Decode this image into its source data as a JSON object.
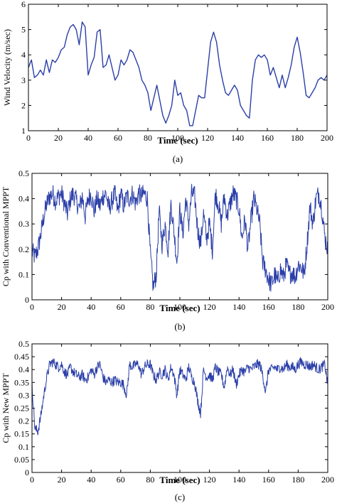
{
  "chart_data": [
    {
      "type": "line",
      "panel_caption": "(a)",
      "xlabel": "Time (sec)",
      "ylabel": "Wind Velocity (m/sec)",
      "xlim": [
        0,
        200
      ],
      "ylim": [
        1,
        6
      ],
      "xticks": [
        0,
        20,
        40,
        60,
        80,
        100,
        120,
        140,
        160,
        180,
        200
      ],
      "yticks": [
        1,
        2,
        3,
        4,
        5,
        6
      ],
      "series": [
        {
          "color": "#2b3fa8",
          "x": [
            0,
            2,
            4,
            6,
            8,
            10,
            12,
            14,
            16,
            18,
            20,
            22,
            24,
            26,
            28,
            30,
            32,
            34,
            36,
            38,
            40,
            42,
            44,
            46,
            48,
            50,
            52,
            54,
            56,
            58,
            60,
            62,
            64,
            66,
            68,
            70,
            72,
            74,
            76,
            78,
            80,
            82,
            84,
            86,
            88,
            90,
            92,
            94,
            96,
            98,
            100,
            102,
            104,
            106,
            108,
            110,
            112,
            114,
            116,
            118,
            120,
            122,
            124,
            126,
            128,
            130,
            132,
            134,
            136,
            138,
            140,
            142,
            144,
            146,
            148,
            150,
            152,
            154,
            156,
            158,
            160,
            162,
            164,
            166,
            168,
            170,
            172,
            174,
            176,
            178,
            180,
            182,
            184,
            186,
            188,
            190,
            192,
            194,
            196,
            198,
            200
          ],
          "y": [
            3.5,
            3.8,
            3.1,
            3.2,
            3.4,
            3.2,
            3.8,
            3.3,
            3.8,
            3.7,
            3.9,
            4.2,
            4.3,
            4.8,
            5.1,
            5.2,
            5.0,
            4.4,
            5.3,
            5.1,
            3.2,
            3.6,
            3.9,
            4.9,
            5.0,
            3.5,
            3.6,
            4.0,
            3.5,
            3.0,
            3.2,
            3.8,
            3.6,
            3.8,
            4.2,
            4.1,
            3.8,
            3.5,
            3.0,
            2.8,
            2.5,
            1.8,
            2.3,
            2.8,
            2.2,
            1.6,
            1.3,
            1.6,
            2.0,
            3.0,
            2.4,
            2.5,
            2.0,
            1.8,
            1.2,
            1.2,
            1.8,
            2.4,
            2.3,
            2.3,
            3.4,
            4.5,
            4.9,
            4.5,
            3.6,
            3.0,
            2.5,
            2.4,
            2.6,
            2.8,
            2.6,
            2.0,
            1.8,
            1.6,
            1.5,
            3.0,
            3.8,
            4.0,
            3.9,
            4.0,
            3.8,
            3.2,
            3.5,
            3.1,
            2.7,
            3.2,
            2.7,
            3.1,
            3.6,
            4.3,
            4.7,
            4.1,
            3.3,
            2.4,
            2.3,
            2.5,
            2.7,
            3.0,
            3.1,
            3.0,
            3.2
          ]
        }
      ]
    },
    {
      "type": "line",
      "panel_caption": "(b)",
      "xlabel": "Time (sec)",
      "ylabel": "Cp with Conventional MPPT",
      "xlim": [
        0,
        200
      ],
      "ylim": [
        0,
        0.5
      ],
      "xticks": [
        0,
        20,
        40,
        60,
        80,
        100,
        120,
        140,
        160,
        180,
        200
      ],
      "yticks": [
        0,
        0.1,
        0.2,
        0.3,
        0.4,
        0.5
      ],
      "series": [
        {
          "color": "#2b3fa8",
          "x": [
            0,
            2,
            4,
            6,
            8,
            10,
            12,
            14,
            16,
            18,
            20,
            22,
            24,
            26,
            28,
            30,
            32,
            34,
            36,
            38,
            40,
            42,
            44,
            46,
            48,
            50,
            52,
            54,
            56,
            58,
            60,
            62,
            64,
            66,
            68,
            70,
            72,
            74,
            76,
            78,
            80,
            82,
            84,
            86,
            88,
            90,
            92,
            94,
            96,
            98,
            100,
            102,
            104,
            106,
            108,
            110,
            112,
            114,
            116,
            118,
            120,
            122,
            124,
            126,
            128,
            130,
            132,
            134,
            136,
            138,
            140,
            142,
            144,
            146,
            148,
            150,
            152,
            154,
            156,
            158,
            160,
            162,
            164,
            166,
            168,
            170,
            172,
            174,
            176,
            178,
            180,
            182,
            184,
            186,
            188,
            190,
            192,
            194,
            196,
            198,
            200
          ],
          "y": [
            0.19,
            0.17,
            0.2,
            0.26,
            0.33,
            0.38,
            0.41,
            0.42,
            0.39,
            0.41,
            0.42,
            0.38,
            0.34,
            0.4,
            0.42,
            0.39,
            0.36,
            0.41,
            0.33,
            0.4,
            0.42,
            0.35,
            0.4,
            0.37,
            0.41,
            0.42,
            0.36,
            0.39,
            0.42,
            0.35,
            0.42,
            0.37,
            0.41,
            0.4,
            0.42,
            0.38,
            0.42,
            0.41,
            0.42,
            0.4,
            0.18,
            0.05,
            0.1,
            0.35,
            0.22,
            0.3,
            0.2,
            0.38,
            0.27,
            0.15,
            0.36,
            0.26,
            0.4,
            0.3,
            0.42,
            0.41,
            0.28,
            0.22,
            0.34,
            0.24,
            0.3,
            0.2,
            0.42,
            0.38,
            0.3,
            0.41,
            0.33,
            0.38,
            0.42,
            0.4,
            0.36,
            0.24,
            0.32,
            0.2,
            0.31,
            0.4,
            0.36,
            0.3,
            0.15,
            0.12,
            0.08,
            0.06,
            0.1,
            0.07,
            0.12,
            0.09,
            0.14,
            0.1,
            0.11,
            0.09,
            0.14,
            0.13,
            0.1,
            0.22,
            0.37,
            0.3,
            0.4,
            0.42,
            0.36,
            0.25,
            0.2
          ]
        }
      ]
    },
    {
      "type": "line",
      "panel_caption": "(c)",
      "xlabel": "Time (sec)",
      "ylabel": "Cp with New MPPT",
      "xlim": [
        0,
        200
      ],
      "ylim": [
        0,
        0.5
      ],
      "xticks": [
        0,
        20,
        40,
        60,
        80,
        100,
        120,
        140,
        160,
        180,
        200
      ],
      "yticks": [
        0,
        0.05,
        0.1,
        0.15,
        0.2,
        0.25,
        0.3,
        0.35,
        0.4,
        0.45,
        0.5
      ],
      "series": [
        {
          "color": "#2b3fa8",
          "x": [
            0,
            2,
            4,
            6,
            8,
            10,
            12,
            14,
            16,
            18,
            20,
            22,
            24,
            26,
            28,
            30,
            32,
            34,
            36,
            38,
            40,
            42,
            44,
            46,
            48,
            50,
            52,
            54,
            56,
            58,
            60,
            62,
            64,
            66,
            68,
            70,
            72,
            74,
            76,
            78,
            80,
            82,
            84,
            86,
            88,
            90,
            92,
            94,
            96,
            98,
            100,
            102,
            104,
            106,
            108,
            110,
            112,
            114,
            116,
            118,
            120,
            122,
            124,
            126,
            128,
            130,
            132,
            134,
            136,
            138,
            140,
            142,
            144,
            146,
            148,
            150,
            152,
            154,
            156,
            158,
            160,
            162,
            164,
            166,
            168,
            170,
            172,
            174,
            176,
            178,
            180,
            182,
            184,
            186,
            188,
            190,
            192,
            194,
            196,
            198,
            200
          ],
          "y": [
            0.34,
            0.17,
            0.16,
            0.22,
            0.3,
            0.37,
            0.42,
            0.43,
            0.42,
            0.41,
            0.42,
            0.39,
            0.38,
            0.41,
            0.39,
            0.38,
            0.37,
            0.38,
            0.36,
            0.37,
            0.4,
            0.38,
            0.41,
            0.42,
            0.37,
            0.35,
            0.36,
            0.35,
            0.36,
            0.35,
            0.35,
            0.34,
            0.3,
            0.42,
            0.41,
            0.42,
            0.42,
            0.38,
            0.41,
            0.42,
            0.42,
            0.38,
            0.36,
            0.39,
            0.38,
            0.4,
            0.36,
            0.41,
            0.38,
            0.3,
            0.4,
            0.38,
            0.36,
            0.41,
            0.37,
            0.35,
            0.28,
            0.23,
            0.4,
            0.37,
            0.38,
            0.36,
            0.41,
            0.39,
            0.38,
            0.33,
            0.41,
            0.38,
            0.4,
            0.34,
            0.38,
            0.4,
            0.39,
            0.41,
            0.4,
            0.41,
            0.42,
            0.42,
            0.38,
            0.31,
            0.4,
            0.4,
            0.41,
            0.4,
            0.41,
            0.4,
            0.42,
            0.41,
            0.41,
            0.4,
            0.42,
            0.43,
            0.42,
            0.42,
            0.41,
            0.42,
            0.41,
            0.4,
            0.41,
            0.42,
            0.34
          ]
        }
      ]
    }
  ]
}
